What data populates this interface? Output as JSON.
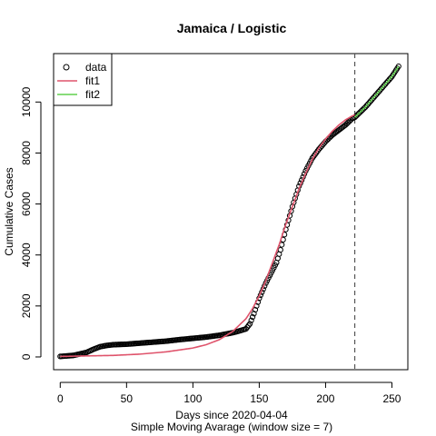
{
  "chart_data": {
    "type": "scatter",
    "title": "Jamaica / Logistic",
    "xlabel": "Days since 2020-04-04",
    "subtitle": "Simple Moving Avarage (window size = 7)",
    "ylabel": "Cumulative Cases",
    "xlim": [
      -5,
      262
    ],
    "ylim": [
      -500,
      11900
    ],
    "x_ticks": [
      0,
      50,
      100,
      150,
      200,
      250
    ],
    "y_ticks": [
      0,
      2000,
      4000,
      6000,
      8000,
      10000
    ],
    "vline": {
      "x": 222,
      "style": "dashed",
      "color": "#555555"
    },
    "legend": {
      "position": "top-left",
      "entries": [
        {
          "label": "data",
          "marker": "circle",
          "color": "#000000"
        },
        {
          "label": "fit1",
          "marker": "line",
          "color": "#DF536B"
        },
        {
          "label": "fit2",
          "marker": "line",
          "color": "#61D04F"
        }
      ]
    },
    "series": [
      {
        "name": "data",
        "kind": "points",
        "color": "#000000",
        "points": [
          [
            0,
            20
          ],
          [
            10,
            60
          ],
          [
            20,
            180
          ],
          [
            25,
            300
          ],
          [
            30,
            400
          ],
          [
            35,
            450
          ],
          [
            40,
            480
          ],
          [
            50,
            500
          ],
          [
            60,
            540
          ],
          [
            70,
            580
          ],
          [
            80,
            620
          ],
          [
            90,
            680
          ],
          [
            100,
            730
          ],
          [
            110,
            780
          ],
          [
            120,
            850
          ],
          [
            130,
            950
          ],
          [
            135,
            1020
          ],
          [
            140,
            1100
          ],
          [
            143,
            1300
          ],
          [
            146,
            1700
          ],
          [
            150,
            2300
          ],
          [
            155,
            2900
          ],
          [
            160,
            3400
          ],
          [
            163,
            3700
          ],
          [
            166,
            4200
          ],
          [
            170,
            5000
          ],
          [
            175,
            5900
          ],
          [
            180,
            6700
          ],
          [
            185,
            7300
          ],
          [
            190,
            7800
          ],
          [
            195,
            8150
          ],
          [
            200,
            8450
          ],
          [
            205,
            8700
          ],
          [
            210,
            8900
          ],
          [
            215,
            9100
          ],
          [
            220,
            9350
          ],
          [
            222,
            9400
          ],
          [
            225,
            9550
          ],
          [
            230,
            9800
          ],
          [
            235,
            10100
          ],
          [
            240,
            10400
          ],
          [
            245,
            10700
          ],
          [
            250,
            11000
          ],
          [
            255,
            11400
          ]
        ]
      },
      {
        "name": "fit1",
        "kind": "line",
        "color": "#DF536B",
        "points": [
          [
            0,
            20
          ],
          [
            20,
            40
          ],
          [
            40,
            60
          ],
          [
            60,
            110
          ],
          [
            80,
            200
          ],
          [
            100,
            350
          ],
          [
            110,
            480
          ],
          [
            120,
            680
          ],
          [
            130,
            1000
          ],
          [
            140,
            1500
          ],
          [
            145,
            1900
          ],
          [
            150,
            2400
          ],
          [
            155,
            3000
          ],
          [
            160,
            3700
          ],
          [
            165,
            4400
          ],
          [
            170,
            5200
          ],
          [
            175,
            5900
          ],
          [
            180,
            6600
          ],
          [
            185,
            7200
          ],
          [
            190,
            7750
          ],
          [
            195,
            8200
          ],
          [
            200,
            8550
          ],
          [
            205,
            8850
          ],
          [
            210,
            9100
          ],
          [
            215,
            9300
          ],
          [
            220,
            9450
          ],
          [
            222,
            9500
          ]
        ]
      },
      {
        "name": "fit2",
        "kind": "line",
        "color": "#61D04F",
        "points": [
          [
            222,
            9400
          ],
          [
            225,
            9550
          ],
          [
            230,
            9800
          ],
          [
            235,
            10100
          ],
          [
            240,
            10400
          ],
          [
            245,
            10700
          ],
          [
            250,
            11000
          ],
          [
            255,
            11400
          ]
        ]
      }
    ]
  }
}
